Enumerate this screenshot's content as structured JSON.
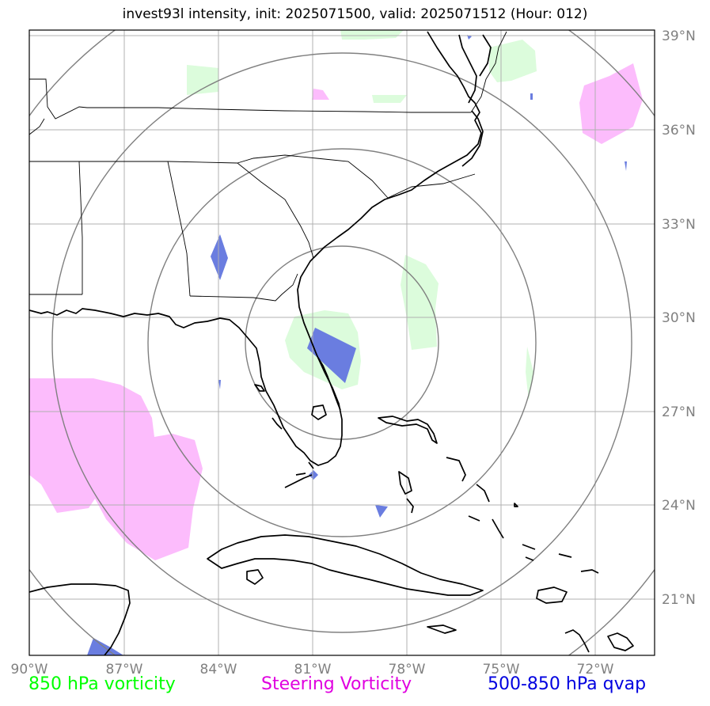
{
  "title": "invest93l intensity, init: 2025071500, valid: 2025071512 (Hour: 012)",
  "lat_labels": [
    "39°N",
    "36°N",
    "33°N",
    "30°N",
    "27°N",
    "24°N",
    "21°N"
  ],
  "lon_labels": [
    "90°W",
    "87°W",
    "84°W",
    "81°W",
    "78°W",
    "75°W",
    "72°W"
  ],
  "legend": {
    "vorticity_850": "850 hPa vorticity",
    "steering_vorticity": "Steering Vorticity",
    "qvap": "500-850 hPa qvap"
  },
  "colors": {
    "vorticity_850": "#00ff00",
    "steering_vorticity": "#e000e0",
    "qvap": "#0000e0",
    "vort_fill": "#dcfcdc",
    "steer_fill": "#fcbcfc",
    "qvap_fill": "#6a7de0",
    "grid": "#b0b0b0",
    "range_rings": "#808080"
  }
}
